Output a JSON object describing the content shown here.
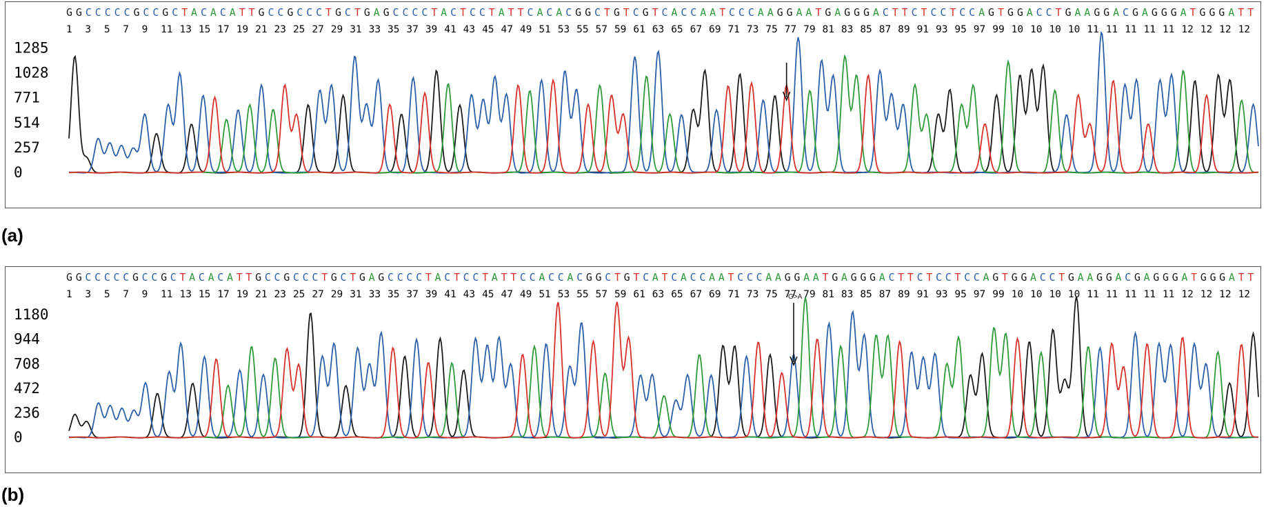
{
  "chart_data": [
    {
      "type": "line",
      "panel_label": "(a)",
      "sequence": "GGCCCCCGCCGCTACACATTGCCGCCCTGCTGAGCCCCTACTCCTATTCACACGGCTGTCGTCACCAATCCCAAGGAATGAGGGACTTCTCCTCCAGTGGACCTGAAGGACGAGGGATGGGATT",
      "position_labels": [
        "1",
        "3",
        "5",
        "7",
        "9",
        "11",
        "13",
        "15",
        "17",
        "19",
        "21",
        "23",
        "25",
        "27",
        "29",
        "31",
        "33",
        "35",
        "37",
        "39",
        "41",
        "43",
        "45",
        "47",
        "49",
        "51",
        "53",
        "55",
        "57",
        "59",
        "61",
        "63",
        "65",
        "67",
        "69",
        "71",
        "73",
        "75",
        "77",
        "79",
        "81",
        "83",
        "85",
        "87",
        "89",
        "91",
        "93",
        "95",
        "97",
        "99",
        "10",
        "10",
        "10",
        "10",
        "11",
        "11",
        "11",
        "11",
        "11",
        "12",
        "12",
        "12",
        "12"
      ],
      "yticks": [
        "0",
        "257",
        "514",
        "771",
        "1028",
        "1285"
      ],
      "ylim": [
        0,
        1480
      ],
      "peaks": [
        1200,
        150,
        350,
        300,
        280,
        250,
        600,
        400,
        700,
        1020,
        500,
        800,
        780,
        550,
        650,
        700,
        900,
        650,
        900,
        600,
        700,
        850,
        900,
        800,
        1200,
        700,
        950,
        700,
        600,
        980,
        820,
        1050,
        920,
        700,
        800,
        750,
        980,
        800,
        900,
        850,
        950,
        950,
        1050,
        850,
        700,
        900,
        800,
        600,
        1200,
        1000,
        1250,
        600,
        600,
        650,
        1050,
        650,
        900,
        1020,
        920,
        750,
        800,
        900,
        1400,
        850,
        1150,
        1000,
        1200,
        1000,
        1000,
        1050,
        800,
        700,
        900,
        600,
        600,
        850,
        700,
        900,
        500,
        800,
        1150,
        1000,
        1050,
        1100,
        850,
        600,
        800,
        500,
        1450,
        950,
        900,
        950,
        500,
        950,
        1000,
        1050,
        950,
        800,
        1000,
        950,
        750,
        700
      ],
      "arrow_index": 61,
      "annotation": ""
    },
    {
      "type": "line",
      "panel_label": "(b)",
      "sequence": "GGCCCCCGCCGCTACACATTGCCGCCCTGCTGAGCCCCTACTCCTATTCCACCACGGCTGTCATCACCAATCCCAAGGAATGAGGGACTTCTCCTCCAGTGGACCTGAAGGACGAGGGATGGGATT",
      "position_labels": [
        "1",
        "3",
        "5",
        "7",
        "9",
        "11",
        "13",
        "15",
        "17",
        "19",
        "21",
        "23",
        "25",
        "27",
        "29",
        "31",
        "33",
        "35",
        "37",
        "39",
        "41",
        "43",
        "45",
        "47",
        "49",
        "51",
        "53",
        "55",
        "57",
        "59",
        "61",
        "63",
        "65",
        "67",
        "69",
        "71",
        "73",
        "75",
        "77",
        "79",
        "81",
        "83",
        "85",
        "87",
        "89",
        "91",
        "93",
        "95",
        "97",
        "99",
        "10",
        "10",
        "10",
        "10",
        "11",
        "11",
        "11",
        "11",
        "11",
        "12",
        "12",
        "12",
        "12"
      ],
      "yticks": [
        "0",
        "236",
        "472",
        "708",
        "944",
        "1180"
      ],
      "ylim": [
        0,
        1380
      ],
      "peaks": [
        220,
        150,
        330,
        300,
        280,
        260,
        520,
        420,
        630,
        900,
        520,
        780,
        760,
        500,
        650,
        880,
        600,
        760,
        850,
        700,
        1200,
        780,
        900,
        500,
        860,
        700,
        1000,
        860,
        780,
        940,
        720,
        950,
        720,
        650,
        950,
        880,
        950,
        700,
        800,
        880,
        900,
        1300,
        680,
        1100,
        920,
        620,
        1300,
        950,
        600,
        600,
        400,
        360,
        600,
        800,
        600,
        880,
        880,
        780,
        920,
        800,
        620,
        800,
        1350,
        950,
        1100,
        880,
        1200,
        980,
        980,
        980,
        920,
        820,
        760,
        800,
        700,
        960,
        600,
        800,
        1050,
        1000,
        950,
        920,
        820,
        1040,
        540,
        1350,
        880,
        860,
        900,
        680,
        1000,
        900,
        900,
        880,
        960,
        900,
        700,
        820,
        520,
        900,
        1000
      ],
      "arrow_index": 61,
      "annotation": "G>A"
    }
  ],
  "colors": {
    "A": "#2e9a3a",
    "C": "#2b5fa8",
    "G": "#1a1a1a",
    "T": "#d8302a"
  }
}
